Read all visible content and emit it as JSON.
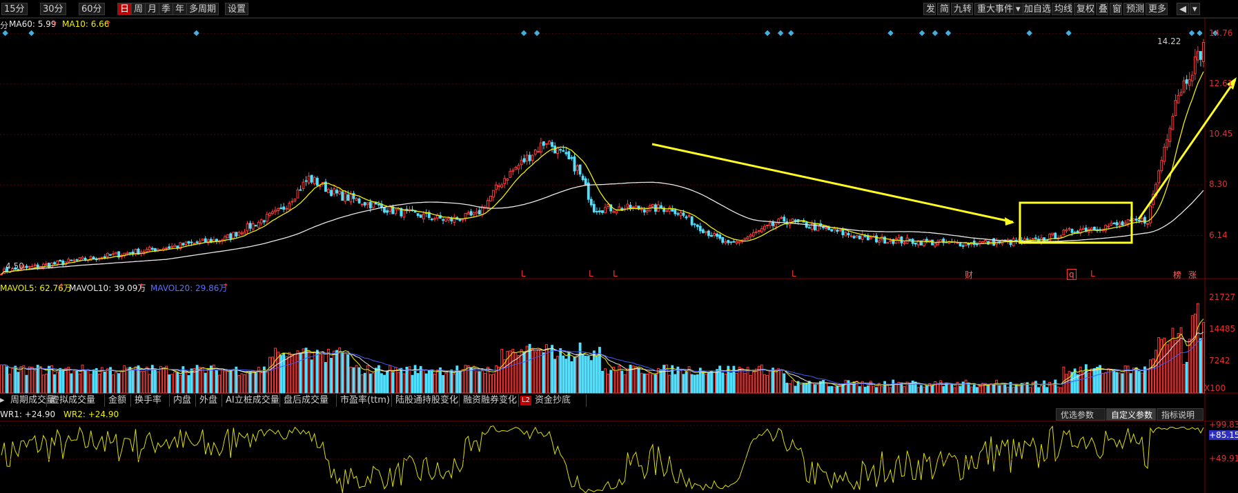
{
  "toolbar": {
    "periods": [
      "15分",
      "30分",
      "60分",
      "日",
      "周",
      "月",
      "季",
      "年",
      "多周期",
      "设置"
    ],
    "active_period": "日",
    "right_items": [
      "发",
      "简",
      "九转",
      "重大事件",
      "加自选",
      "均线",
      "复权",
      "叠",
      "窗",
      "预测",
      "更多"
    ]
  },
  "colors": {
    "up": "#ff3b3b",
    "down": "#50e0ff",
    "ma10": "#f0f000",
    "ma60": "#e8e8e8",
    "mavol20": "#4060ff",
    "annotation": "#ffff20",
    "grid": "#5a0000"
  },
  "price_panel": {
    "indicator_prefix": "分",
    "ma60_label": "MA60: 5.99",
    "ma10_label": "MA10: 6.66",
    "y_ticks": [
      "14.76",
      "12.61",
      "10.45",
      "8.30",
      "6.14"
    ],
    "high_label": "14.22",
    "low_label": "4.50",
    "event_markers": [
      "L",
      "L",
      "L",
      "L",
      "财",
      "q",
      "L",
      "榜",
      "涨"
    ]
  },
  "volume_panel": {
    "mavol5_label": "MAVOL5: 62.76万",
    "mavol10_label": "MAVOL10: 39.09万",
    "mavol20_label": "MAVOL20: 29.86万",
    "y_ticks": [
      "21727",
      "14485",
      "7242"
    ],
    "unit": "X100"
  },
  "indicator_tabs": [
    "周期成交量",
    "虚拟成交量",
    "金额",
    "换手率",
    "内盘",
    "外盘",
    "AI立桩成交量",
    "盘后成交量",
    "市盈率(ttm)",
    "陆股通持股变化",
    "融资融券变化",
    "资金抄底"
  ],
  "tab_badge": "L2",
  "wr_panel": {
    "wr1_label": "WR1: +24.90",
    "wr2_label": "WR2: +24.90",
    "y_ticks": [
      "+99.83",
      "+85.15",
      "+49.91"
    ],
    "buttons": [
      "优选参数",
      "自定义参数",
      "指标说明"
    ]
  },
  "chart_data": {
    "type": "candlestick",
    "y_ticks_price": [
      14.76,
      12.61,
      10.45,
      8.3,
      6.14
    ],
    "ylim_price": [
      4.3,
      15.2
    ],
    "anchors_close": [
      [
        0,
        4.6
      ],
      [
        40,
        5.3
      ],
      [
        80,
        6.0
      ],
      [
        100,
        7.2
      ],
      [
        110,
        8.6
      ],
      [
        120,
        7.9
      ],
      [
        140,
        7.2
      ],
      [
        160,
        6.8
      ],
      [
        170,
        7.0
      ],
      [
        180,
        8.6
      ],
      [
        195,
        10.2
      ],
      [
        206,
        9.0
      ],
      [
        212,
        7.3
      ],
      [
        240,
        7.3
      ],
      [
        260,
        5.7
      ],
      [
        280,
        6.8
      ],
      [
        310,
        6.0
      ],
      [
        340,
        5.8
      ],
      [
        370,
        5.9
      ],
      [
        385,
        6.4
      ],
      [
        400,
        6.6
      ],
      [
        410,
        6.8
      ],
      [
        420,
        12.0
      ],
      [
        430,
        14.2
      ]
    ],
    "ylim_volume": [
      0,
      23000
    ],
    "ylim_wr": [
      0,
      100
    ]
  }
}
